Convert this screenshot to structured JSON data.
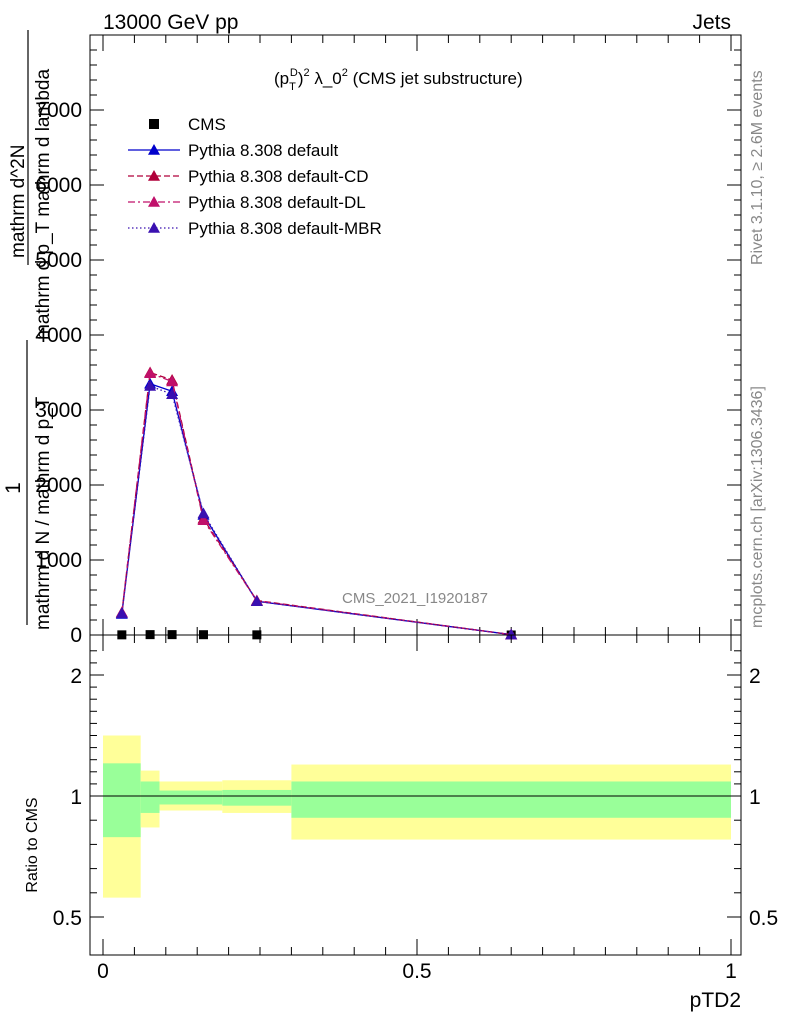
{
  "header": {
    "left": "13000 GeV pp",
    "right": "Jets"
  },
  "side_labels": {
    "rivet": "Rivet 3.1.10, ≥ 2.6M events",
    "mcplots": "mcplots.cern.ch [arXiv:1306.3436]"
  },
  "watermark": "CMS_2021_I1920187",
  "chart_data": [
    {
      "type": "line",
      "title": "(p_T^D)^2 λ_0^2 (CMS jet substructure)",
      "title_parts": {
        "p": "(p",
        "sup_d": "D",
        "sub_t": "T",
        "close": ")",
        "sup2": "2",
        "lambda": " λ_0",
        "sup2b": "2",
        "rest": " (CMS jet substructure)"
      },
      "ylabel_numerator": "1",
      "ylabel_denominator": "mathrm d N / mathrm d p_T",
      "ylabel_right_numerator": "mathrm d^2N",
      "ylabel_right_denominator": "mathrm d p_T mathrm d lambda",
      "xlim": [
        0,
        1
      ],
      "ylim": [
        0,
        8000
      ],
      "yticks": [
        0,
        1000,
        2000,
        3000,
        4000,
        5000,
        6000,
        7000
      ],
      "ytick_labels": [
        "0",
        "1000",
        "2000",
        "3000",
        "4000",
        "5000",
        "6000",
        "7000"
      ],
      "legend_position": "top-left",
      "series": [
        {
          "name": "CMS",
          "x": [
            0.03,
            0.075,
            0.11,
            0.16,
            0.245,
            0.65
          ],
          "y": [
            2,
            5,
            5,
            4,
            2,
            0.1
          ],
          "color": "#000000",
          "marker": "square",
          "line": "none"
        },
        {
          "name": "Pythia 8.308 default",
          "x": [
            0.03,
            0.075,
            0.11,
            0.16,
            0.245,
            0.65
          ],
          "y": [
            280,
            3350,
            3250,
            1600,
            450,
            5
          ],
          "color": "#0000cc",
          "marker": "triangle",
          "line": "solid"
        },
        {
          "name": "Pythia 8.308 default-CD",
          "x": [
            0.03,
            0.075,
            0.11,
            0.16,
            0.245,
            0.65
          ],
          "y": [
            300,
            3500,
            3400,
            1550,
            460,
            5
          ],
          "color": "#b0003a",
          "marker": "triangle",
          "line": "dashed"
        },
        {
          "name": "Pythia 8.308 default-DL",
          "x": [
            0.03,
            0.075,
            0.11,
            0.16,
            0.245,
            0.65
          ],
          "y": [
            300,
            3490,
            3380,
            1530,
            455,
            5
          ],
          "color": "#c0106a",
          "marker": "triangle",
          "line": "dashdot"
        },
        {
          "name": "Pythia 8.308 default-MBR",
          "x": [
            0.03,
            0.075,
            0.11,
            0.16,
            0.245,
            0.65
          ],
          "y": [
            290,
            3320,
            3210,
            1620,
            450,
            5
          ],
          "color": "#3a10b0",
          "marker": "triangle",
          "line": "dotted"
        }
      ]
    },
    {
      "type": "area",
      "title": "",
      "xlabel": "pTD2",
      "ylabel": "Ratio to CMS",
      "xlim": [
        0,
        1
      ],
      "ylim": [
        0.3,
        2.3
      ],
      "xticks": [
        0,
        0.5,
        1
      ],
      "xtick_labels": [
        "0",
        "0.5",
        "1"
      ],
      "yticks": [
        0.5,
        1,
        2
      ],
      "ytick_labels": [
        "0.5",
        "1",
        "2"
      ],
      "reference_line": 1,
      "bins": [
        {
          "x0": 0.0,
          "x1": 0.06,
          "green": [
            0.83,
            1.27
          ],
          "yellow": [
            0.58,
            1.5
          ]
        },
        {
          "x0": 0.06,
          "x1": 0.09,
          "green": [
            0.93,
            1.12
          ],
          "yellow": [
            0.87,
            1.21
          ]
        },
        {
          "x0": 0.09,
          "x1": 0.19,
          "green": [
            0.965,
            1.045
          ],
          "yellow": [
            0.94,
            1.12
          ]
        },
        {
          "x0": 0.19,
          "x1": 0.3,
          "green": [
            0.96,
            1.05
          ],
          "yellow": [
            0.93,
            1.13
          ]
        },
        {
          "x0": 0.3,
          "x1": 1.0,
          "green": [
            0.91,
            1.12
          ],
          "yellow": [
            0.82,
            1.26
          ]
        }
      ],
      "colors": {
        "green": "#99ff99",
        "yellow": "#ffff99"
      }
    }
  ]
}
